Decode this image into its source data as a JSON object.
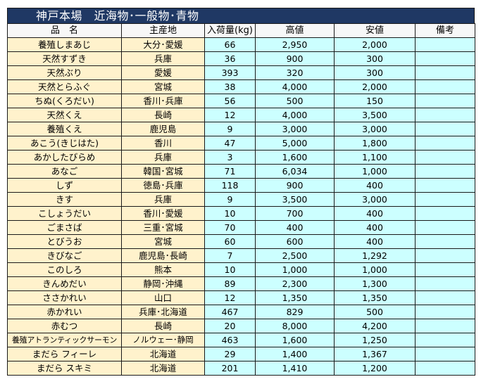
{
  "title": "神戸本場　近海物･一般物･青物",
  "headers": [
    "品　名",
    "主産地",
    "入荷量(kg)",
    "高値",
    "安値",
    "備考"
  ],
  "colors": {
    "title_bg": "#1f3864",
    "name_bg": "#fff2cc",
    "value_bg": "#ccffff"
  },
  "rows": [
    {
      "name": "養殖しまあじ",
      "origin": "大分･愛媛",
      "qty": "66",
      "high": "2,950",
      "low": "2,000",
      "note": ""
    },
    {
      "name": "天然すずき",
      "origin": "兵庫",
      "qty": "36",
      "high": "900",
      "low": "300",
      "note": ""
    },
    {
      "name": "天然ぶり",
      "origin": "愛媛",
      "qty": "393",
      "high": "320",
      "low": "300",
      "note": ""
    },
    {
      "name": "天然とらふぐ",
      "origin": "宮城",
      "qty": "38",
      "high": "4,000",
      "low": "2,000",
      "note": ""
    },
    {
      "name": "ちぬ(くろだい)",
      "origin": "香川･兵庫",
      "qty": "56",
      "high": "500",
      "low": "150",
      "note": ""
    },
    {
      "name": "天然くえ",
      "origin": "長崎",
      "qty": "12",
      "high": "4,000",
      "low": "3,500",
      "note": ""
    },
    {
      "name": "養殖くえ",
      "origin": "鹿児島",
      "qty": "9",
      "high": "3,000",
      "low": "3,000",
      "note": ""
    },
    {
      "name": "あこう(きじはた)",
      "origin": "香川",
      "qty": "47",
      "high": "5,000",
      "low": "1,800",
      "note": ""
    },
    {
      "name": "あかしたびらめ",
      "origin": "兵庫",
      "qty": "3",
      "high": "1,600",
      "low": "1,100",
      "note": ""
    },
    {
      "name": "あなご",
      "origin": "韓国･宮城",
      "qty": "71",
      "high": "6,034",
      "low": "1,000",
      "note": ""
    },
    {
      "name": "しず",
      "origin": "徳島･兵庫",
      "qty": "118",
      "high": "900",
      "low": "400",
      "note": ""
    },
    {
      "name": "きす",
      "origin": "兵庫",
      "qty": "9",
      "high": "3,500",
      "low": "3,000",
      "note": ""
    },
    {
      "name": "こしょうだい",
      "origin": "香川･愛媛",
      "qty": "10",
      "high": "700",
      "low": "400",
      "note": ""
    },
    {
      "name": "ごまさば",
      "origin": "三重･宮城",
      "qty": "70",
      "high": "400",
      "low": "400",
      "note": ""
    },
    {
      "name": "とびうお",
      "origin": "宮城",
      "qty": "60",
      "high": "600",
      "low": "400",
      "note": ""
    },
    {
      "name": "きびなご",
      "origin": "鹿児島･長崎",
      "qty": "7",
      "high": "2,500",
      "low": "1,292",
      "note": ""
    },
    {
      "name": "このしろ",
      "origin": "熊本",
      "qty": "10",
      "high": "1,000",
      "low": "1,000",
      "note": ""
    },
    {
      "name": "きんめだい",
      "origin": "静岡･沖縄",
      "qty": "89",
      "high": "2,300",
      "low": "1,300",
      "note": ""
    },
    {
      "name": "ささかれい",
      "origin": "山口",
      "qty": "12",
      "high": "1,350",
      "low": "1,350",
      "note": ""
    },
    {
      "name": "赤かれい",
      "origin": "兵庫･北海道",
      "qty": "467",
      "high": "829",
      "low": "500",
      "note": ""
    },
    {
      "name": "赤むつ",
      "origin": "長崎",
      "qty": "20",
      "high": "8,000",
      "low": "4,200",
      "note": ""
    },
    {
      "name": "養殖アトランティックサーモン",
      "origin": "ノルウェー･静岡",
      "qty": "463",
      "high": "1,600",
      "low": "1,250",
      "note": ""
    },
    {
      "name": "まだら フィーレ",
      "origin": "北海道",
      "qty": "29",
      "high": "1,400",
      "low": "1,367",
      "note": ""
    },
    {
      "name": "まだら スキミ",
      "origin": "北海道",
      "qty": "201",
      "high": "1,410",
      "low": "1,200",
      "note": ""
    }
  ]
}
